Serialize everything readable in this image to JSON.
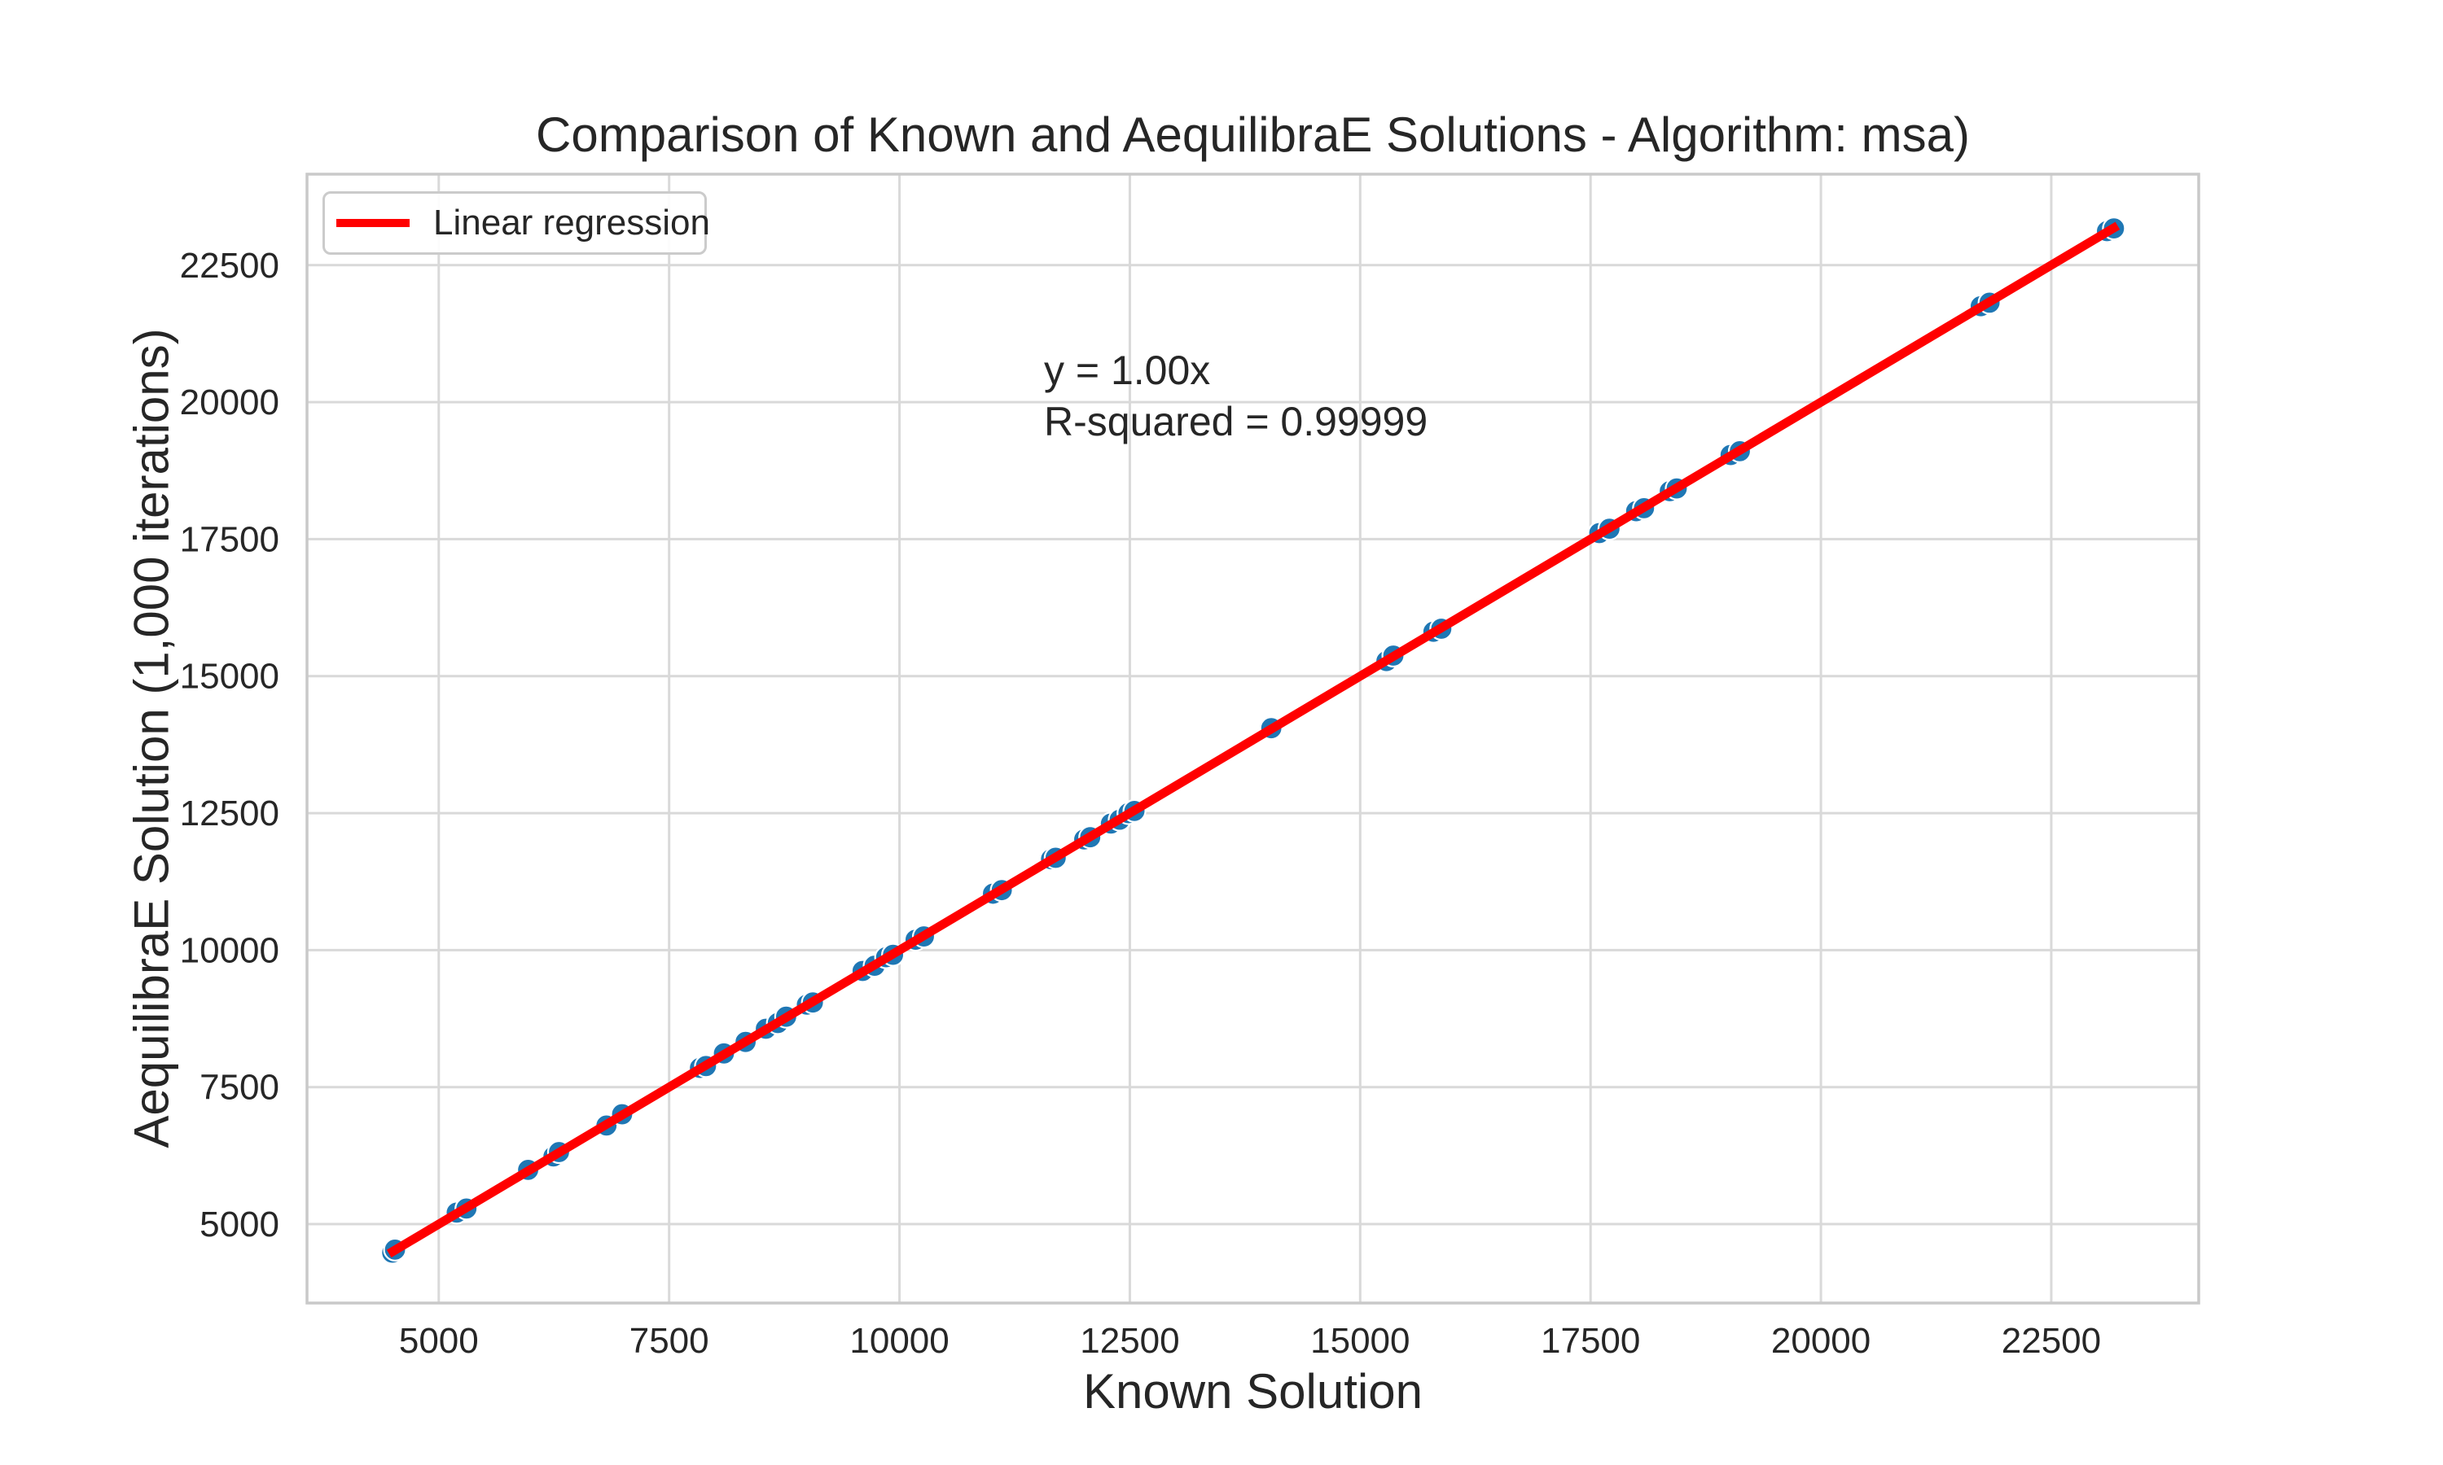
{
  "chart_data": {
    "type": "scatter",
    "title": "Comparison of Known and AequilibraE Solutions - Algorithm: msa)",
    "xlabel": "Known Solution",
    "ylabel": "AequilibraE Solution (1,000 iterations)",
    "xlim": [
      3570,
      24100
    ],
    "ylim": [
      3560,
      24160
    ],
    "xticks": [
      5000,
      7500,
      10000,
      12500,
      15000,
      17500,
      20000,
      22500
    ],
    "yticks": [
      5000,
      7500,
      10000,
      12500,
      15000,
      17500,
      20000,
      22500
    ],
    "grid": true,
    "legend": {
      "position": "upper left",
      "label": "Linear regression"
    },
    "annotation": {
      "line1": "y = 1.00x",
      "line2": "R-squared = 0.99999"
    },
    "regression": {
      "equation": "y = 1.00x",
      "slope": 1.0,
      "intercept": 0,
      "r_squared": 0.99999,
      "x_start": 4460,
      "x_end": 23220,
      "color": "#ff0000"
    },
    "series": [
      {
        "name": "AequilibraE solution vs known solution",
        "marker_color": "#1f77b4",
        "points": [
          [
            4495,
            4480
          ],
          [
            4525,
            4535
          ],
          [
            5195,
            5210
          ],
          [
            5300,
            5285
          ],
          [
            5970,
            5990
          ],
          [
            6245,
            6235
          ],
          [
            6305,
            6315
          ],
          [
            6820,
            6800
          ],
          [
            6990,
            7005
          ],
          [
            7835,
            7850
          ],
          [
            7900,
            7885
          ],
          [
            8095,
            8115
          ],
          [
            8330,
            8325
          ],
          [
            8550,
            8565
          ],
          [
            8680,
            8670
          ],
          [
            8770,
            8785
          ],
          [
            8995,
            9005
          ],
          [
            9060,
            9045
          ],
          [
            9600,
            9620
          ],
          [
            9730,
            9715
          ],
          [
            9855,
            9870
          ],
          [
            9930,
            9915
          ],
          [
            10175,
            10190
          ],
          [
            10265,
            10250
          ],
          [
            11015,
            11030
          ],
          [
            11110,
            11095
          ],
          [
            11645,
            11660
          ],
          [
            11695,
            11685
          ],
          [
            12005,
            12020
          ],
          [
            12070,
            12060
          ],
          [
            12295,
            12310
          ],
          [
            12390,
            12380
          ],
          [
            12485,
            12500
          ],
          [
            12550,
            12540
          ],
          [
            14035,
            14050
          ],
          [
            15285,
            15275
          ],
          [
            15360,
            15375
          ],
          [
            15795,
            15810
          ],
          [
            15880,
            15865
          ],
          [
            17595,
            17610
          ],
          [
            17705,
            17690
          ],
          [
            17995,
            18010
          ],
          [
            18080,
            18065
          ],
          [
            18360,
            18375
          ],
          [
            18435,
            18425
          ],
          [
            19020,
            19035
          ],
          [
            19120,
            19105
          ],
          [
            21735,
            21750
          ],
          [
            21830,
            21815
          ],
          [
            23105,
            23120
          ],
          [
            23180,
            23170
          ]
        ]
      }
    ]
  },
  "style": {
    "background": "#ffffff",
    "text_color": "#262626",
    "grid_color": "#d9d9d9",
    "spine_color": "#c9c9c9",
    "marker_color": "#1f77b4",
    "marker_edge_color": "#ffffff",
    "regression_color": "#ff0000"
  }
}
